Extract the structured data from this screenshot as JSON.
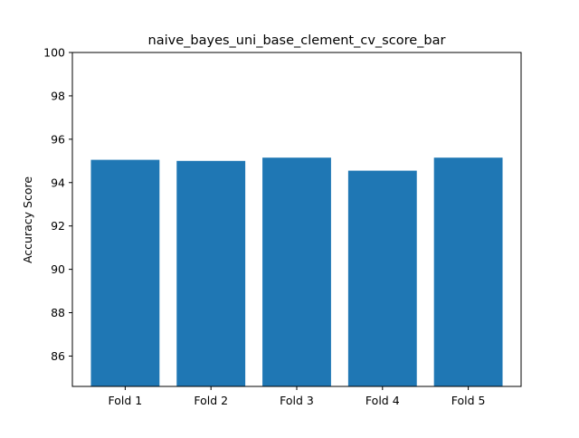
{
  "chart_data": {
    "type": "bar",
    "title": "naive_bayes_uni_base_clement_cv_score_bar",
    "xlabel": "",
    "ylabel": "Accuracy Score",
    "categories": [
      "Fold 1",
      "Fold 2",
      "Fold 3",
      "Fold 4",
      "Fold 5"
    ],
    "values": [
      95.05,
      95.0,
      95.15,
      94.55,
      95.15
    ],
    "ylim": [
      84.6,
      100
    ],
    "yticks": [
      86,
      88,
      90,
      92,
      94,
      96,
      98,
      100
    ],
    "bar_color": "#1f77b4",
    "grid": false
  }
}
